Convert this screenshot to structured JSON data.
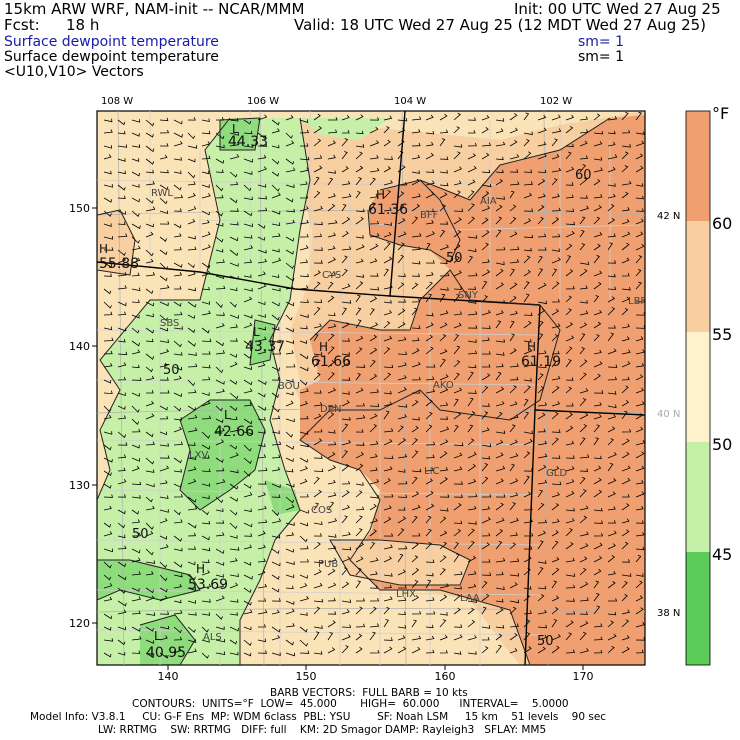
{
  "header": {
    "model": "15km ARW WRF, NAM-init -- NCAR/MMM",
    "init": "Init: 00 UTC Wed 27 Aug 25",
    "fcst_label": "Fcst:",
    "fcst_value": "18 h",
    "valid": "Valid: 18 UTC Wed 27 Aug 25 (12 MDT Wed 27 Aug 25)",
    "field_primary": "Surface dewpoint temperature",
    "sm_primary": "sm= 1",
    "field_secondary": "Surface dewpoint temperature",
    "sm_secondary": "sm= 1",
    "vectors": "<U10,V10> Vectors"
  },
  "map": {
    "lon_labels": [
      "108 W",
      "106 W",
      "104 W",
      "102 W"
    ],
    "lat_labels": [
      "42 N",
      "40 N",
      "38 N"
    ],
    "x_ticks": [
      "140",
      "150",
      "160",
      "170"
    ],
    "y_ticks": [
      "150",
      "140",
      "130",
      "120"
    ],
    "cities": [
      "RWL",
      "BFF",
      "AIA",
      "CYS",
      "SNY",
      "LBF",
      "SBS",
      "BOU",
      "AKO",
      "DEN",
      "LXV",
      "LIC",
      "GLD",
      "COS",
      "PUB",
      "LHX",
      "LAA",
      "ALS"
    ],
    "extrema": [
      {
        "type": "L",
        "value": "44.33"
      },
      {
        "type": "H",
        "value": "61.36"
      },
      {
        "type": "H",
        "value": "55.88"
      },
      {
        "type": "L",
        "value": "43.37"
      },
      {
        "type": "H",
        "value": "61.66"
      },
      {
        "type": "H",
        "value": "61.19"
      },
      {
        "type": "L",
        "value": "42.66"
      },
      {
        "type": "H",
        "value": "53.69"
      },
      {
        "type": "L",
        "value": "40.95"
      }
    ],
    "contour_labels": [
      "60",
      "50",
      "50",
      "50",
      "50"
    ]
  },
  "colorbar": {
    "unit": "°F",
    "tick_labels": [
      "60",
      "55",
      "50",
      "45"
    ],
    "colors": [
      "#f0a070",
      "#f7cfa0",
      "#fdf2cc",
      "#c6efa8",
      "#8fdc7c",
      "#5ccc58"
    ]
  },
  "footer": {
    "barb": "BARB VECTORS:  FULL BARB = 10 kts",
    "contours": "CONTOURS:  UNITS=°F  LOW=  45.000       HIGH=  60.000      INTERVAL=    5.0000",
    "model_info": "Model Info: V3.8.1     CU: G-F Ens  MP: WDM 6class  PBL: YSU        SF: Noah LSM     15 km    51 levels    90 sec",
    "physics": "LW: RRTMG    SW: RRTMG   DIFF: full    KM: 2D Smagor DAMP: Rayleigh3   SFLAY: MM5"
  }
}
